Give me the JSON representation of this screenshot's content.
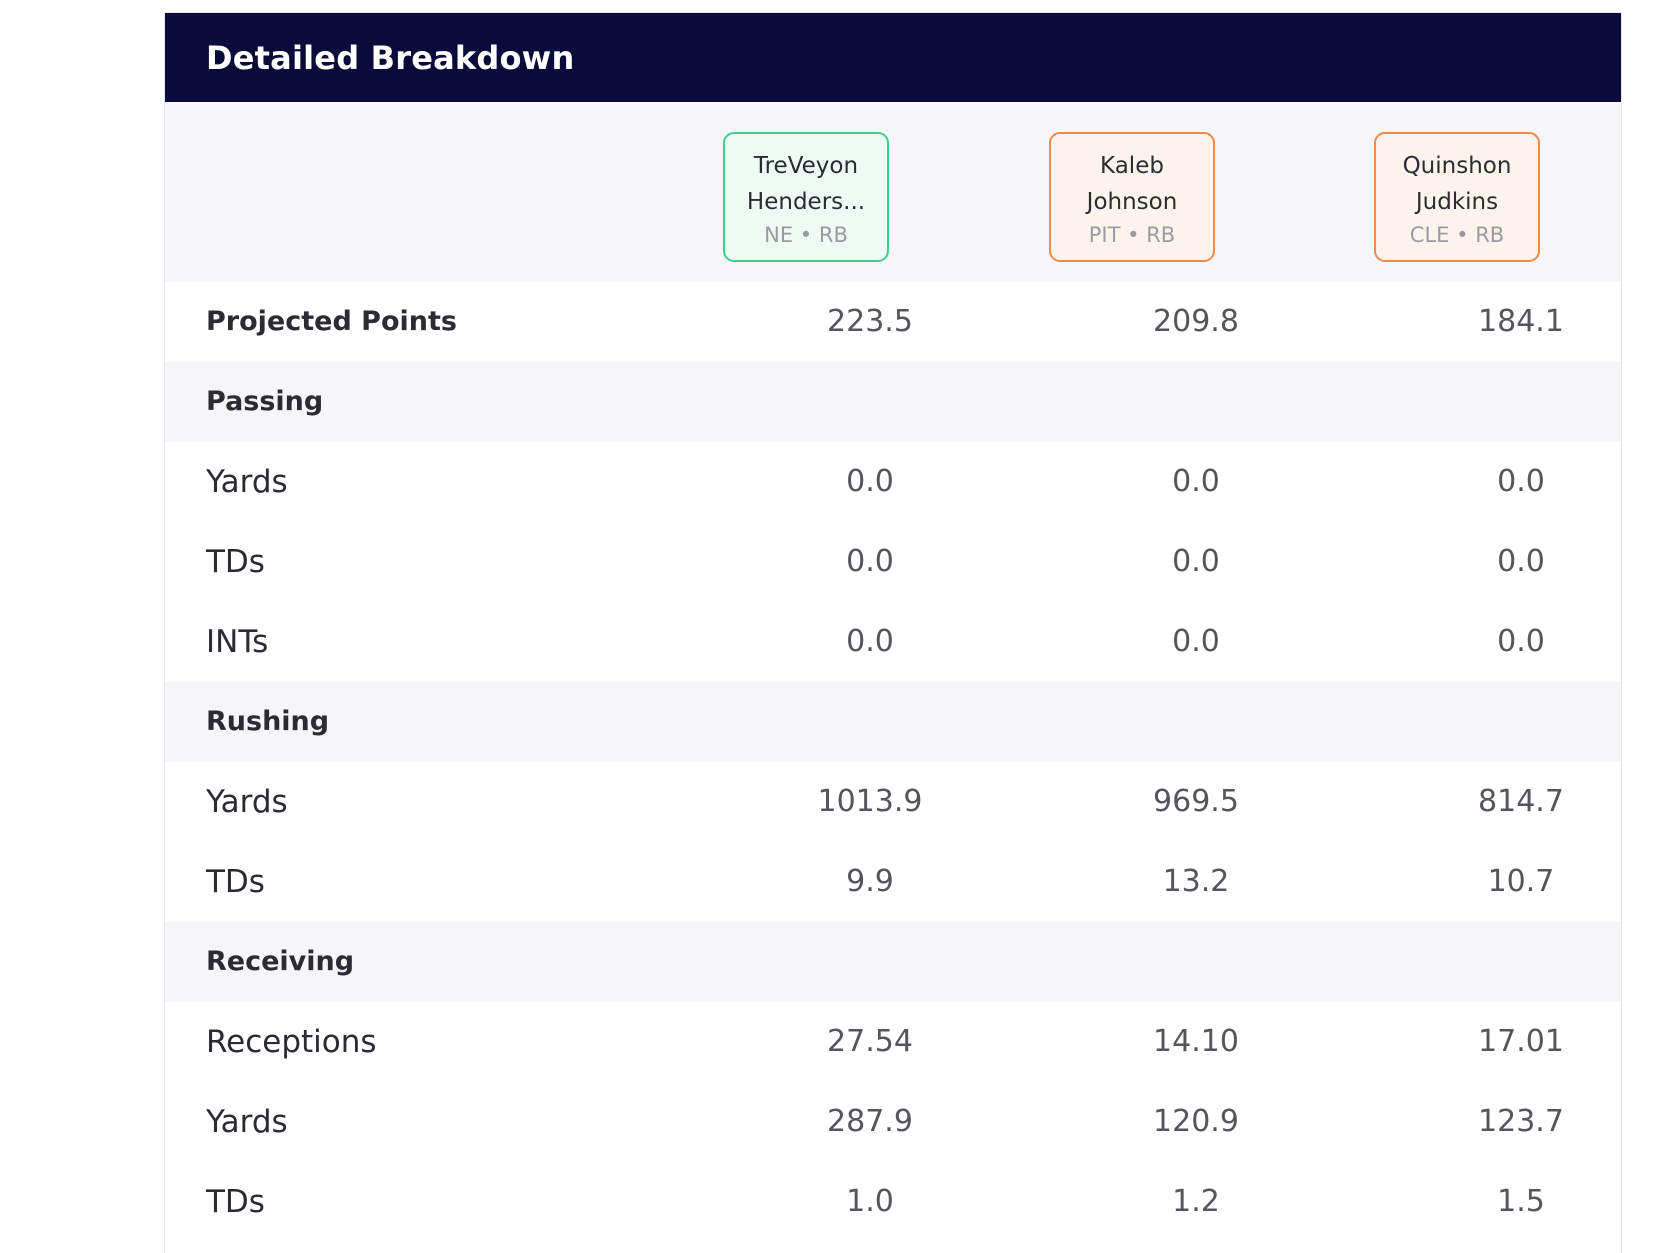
{
  "title": "Detailed Breakdown",
  "players": [
    {
      "name_line1": "TreVeyon",
      "name_line2": "Henders...",
      "team": "NE",
      "position": "RB",
      "separator": "•",
      "border_color": "#3ecf8e",
      "bg_color": "#eefbf4"
    },
    {
      "name_line1": "Kaleb",
      "name_line2": "Johnson",
      "team": "PIT",
      "position": "RB",
      "separator": "•",
      "border_color": "#f08a4b",
      "bg_color": "#fdf3ed"
    },
    {
      "name_line1": "Quinshon",
      "name_line2": "Judkins",
      "team": "CLE",
      "position": "RB",
      "separator": "•",
      "border_color": "#f08a4b",
      "bg_color": "#fdf3ed"
    }
  ],
  "rows": {
    "projected": {
      "label": "Projected Points",
      "values": [
        "223.5",
        "209.8",
        "184.1"
      ]
    },
    "passing": {
      "label": "Passing"
    },
    "pass_yards": {
      "label": "Yards",
      "values": [
        "0.0",
        "0.0",
        "0.0"
      ]
    },
    "pass_tds": {
      "label": "TDs",
      "values": [
        "0.0",
        "0.0",
        "0.0"
      ]
    },
    "pass_ints": {
      "label": "INTs",
      "values": [
        "0.0",
        "0.0",
        "0.0"
      ]
    },
    "rushing": {
      "label": "Rushing"
    },
    "rush_yards": {
      "label": "Yards",
      "values": [
        "1013.9",
        "969.5",
        "814.7"
      ]
    },
    "rush_tds": {
      "label": "TDs",
      "values": [
        "9.9",
        "13.2",
        "10.7"
      ]
    },
    "receiving": {
      "label": "Receiving"
    },
    "receptions": {
      "label": "Receptions",
      "values": [
        "27.54",
        "14.10",
        "17.01"
      ]
    },
    "rec_yards": {
      "label": "Yards",
      "values": [
        "287.9",
        "120.9",
        "123.7"
      ]
    },
    "rec_tds": {
      "label": "TDs",
      "values": [
        "1.0",
        "1.2",
        "1.5"
      ]
    }
  }
}
